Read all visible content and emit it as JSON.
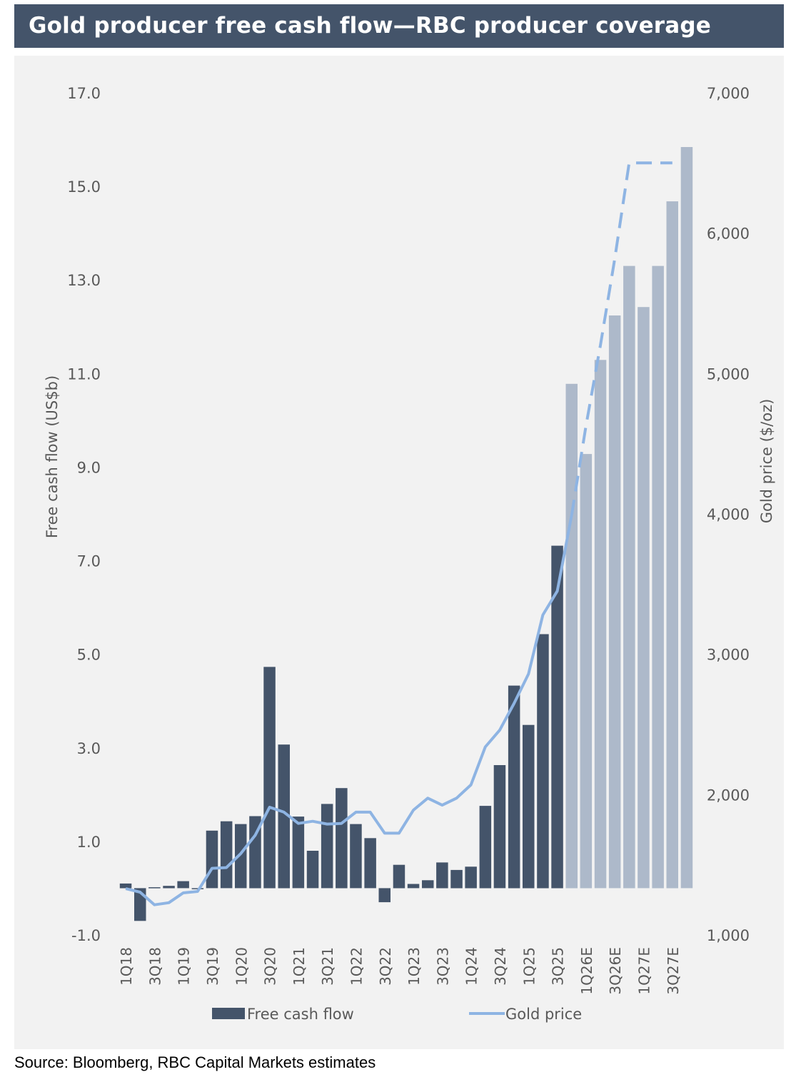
{
  "header": {
    "title": "Gold producer free cash flow—RBC producer coverage"
  },
  "source": {
    "text": "Source: Bloomberg, RBC Capital Markets estimates"
  },
  "colors": {
    "header_bg": "#44546a",
    "bar_actual": "#44546a",
    "bar_estimate": "#adb9ca",
    "line": "#8eb4e3",
    "axis_text": "#595959",
    "plot_bg": "#f2f2f2"
  },
  "chart_data": {
    "type": "bar",
    "title": "Gold producer free cash flow—RBC producer coverage",
    "ylabel": "Free cash flow (US$b)",
    "y2label": "Gold price ($/oz)",
    "ylim": [
      -1.0,
      17.0
    ],
    "y2lim": [
      1000,
      7000
    ],
    "yticks": [
      "-1.0",
      "1.0",
      "3.0",
      "5.0",
      "7.0",
      "9.0",
      "11.0",
      "13.0",
      "15.0",
      "17.0"
    ],
    "y2ticks": [
      "1,000",
      "2,000",
      "3,000",
      "4,000",
      "5,000",
      "6,000",
      "7,000"
    ],
    "categories": [
      "1Q18",
      "2Q18",
      "3Q18",
      "4Q18",
      "1Q19",
      "2Q19",
      "3Q19",
      "4Q19",
      "1Q20",
      "2Q20",
      "3Q20",
      "4Q20",
      "1Q21",
      "2Q21",
      "3Q21",
      "4Q21",
      "1Q22",
      "2Q22",
      "3Q22",
      "4Q22",
      "1Q23",
      "2Q23",
      "3Q23",
      "4Q23",
      "1Q24",
      "2Q24",
      "3Q24",
      "4Q24",
      "1Q25",
      "2Q25",
      "3Q25",
      "4Q25",
      "1Q26E",
      "2Q26E",
      "3Q26E",
      "4Q26E",
      "1Q27E",
      "2Q27E",
      "3Q27E",
      "4Q27E"
    ],
    "xtick_labels": [
      "1Q18",
      "3Q18",
      "1Q19",
      "3Q19",
      "1Q20",
      "3Q20",
      "1Q21",
      "3Q21",
      "1Q22",
      "3Q22",
      "1Q23",
      "3Q23",
      "1Q24",
      "3Q24",
      "1Q25",
      "3Q25",
      "1Q26E",
      "3Q26E",
      "1Q27E",
      "3Q27E"
    ],
    "estimate_start_index": 31,
    "series": [
      {
        "name": "Free cash flow",
        "type": "bar",
        "axis": "left",
        "values": [
          0.1,
          -0.7,
          0.02,
          0.05,
          0.15,
          0.0,
          1.23,
          1.43,
          1.37,
          1.54,
          4.73,
          3.07,
          1.53,
          0.8,
          1.8,
          2.14,
          1.37,
          1.07,
          -0.3,
          0.5,
          0.09,
          0.17,
          0.55,
          0.39,
          0.46,
          1.76,
          2.63,
          4.33,
          3.49,
          5.43,
          7.32,
          10.78,
          9.28,
          11.29,
          12.24,
          13.3,
          12.42,
          13.3,
          14.68,
          15.84
        ]
      },
      {
        "name": "Gold price",
        "type": "line",
        "axis": "right",
        "values": [
          1330,
          1305,
          1215,
          1230,
          1300,
          1310,
          1475,
          1480,
          1580,
          1710,
          1910,
          1875,
          1795,
          1810,
          1790,
          1795,
          1875,
          1875,
          1725,
          1725,
          1890,
          1975,
          1925,
          1975,
          2070,
          2340,
          2460,
          2650,
          2860,
          3280,
          3450,
          3990,
          null,
          null,
          null,
          null,
          null,
          null,
          null,
          null
        ]
      },
      {
        "name": "Gold price (estimate)",
        "type": "line",
        "style": "dashed",
        "axis": "right",
        "values": [
          null,
          null,
          null,
          null,
          null,
          null,
          null,
          null,
          null,
          null,
          null,
          null,
          null,
          null,
          null,
          null,
          null,
          null,
          null,
          null,
          null,
          null,
          null,
          null,
          null,
          null,
          null,
          null,
          null,
          null,
          null,
          3990,
          4630,
          5200,
          5820,
          6500,
          6500,
          6500,
          6500,
          null
        ]
      }
    ],
    "legend": [
      {
        "name": "Free cash flow",
        "marker": "bar"
      },
      {
        "name": "Gold price",
        "marker": "line"
      }
    ],
    "legend_position": "bottom",
    "grid": false
  }
}
